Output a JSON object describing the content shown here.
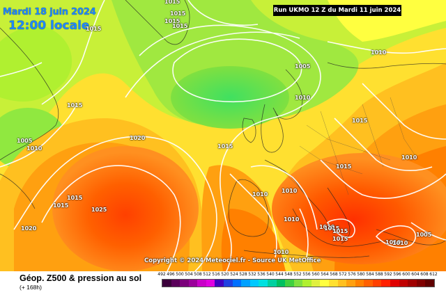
{
  "header": {
    "date": "Mardi 18 juin 2024",
    "time": "12:00 locale",
    "run": "Run UKMO 12 Z du Mardi 11 juin 2024"
  },
  "copyright": "Copyright © 2024 Meteociel.fr - Source UK MetOffice",
  "footer": {
    "product": "Géop. Z500 & pression au sol",
    "horizon": "(+ 168h)"
  },
  "isobar_labels": [
    "1015",
    "1015",
    "1015",
    "1015",
    "1015",
    "1010",
    "1005",
    "1015",
    "1010",
    "1015",
    "1005",
    "1010",
    "1010",
    "1020",
    "1015",
    "1015",
    "1010",
    "1010",
    "1015",
    "1015",
    "1025",
    "1010",
    "1010",
    "1010",
    "1020",
    "1015",
    "1015",
    "1010",
    "1005",
    "1010",
    "1015"
  ],
  "legend": {
    "ticks": [
      "492",
      "496",
      "500",
      "504",
      "508",
      "512",
      "516",
      "520",
      "524",
      "528",
      "532",
      "536",
      "540",
      "544",
      "548",
      "552",
      "556",
      "560",
      "564",
      "568",
      "572",
      "576",
      "580",
      "584",
      "588",
      "592",
      "596",
      "600",
      "604",
      "608",
      "612"
    ],
    "colors": [
      "#3a003a",
      "#5a005a",
      "#7a007a",
      "#9a009a",
      "#c800c8",
      "#e000e0",
      "#4000c0",
      "#2040e0",
      "#0070ff",
      "#00a0ff",
      "#00c8ff",
      "#00e0e0",
      "#00d0a0",
      "#00c060",
      "#40d040",
      "#80e040",
      "#b0f030",
      "#e0f040",
      "#ffff40",
      "#ffe030",
      "#ffc020",
      "#ffa010",
      "#ff8000",
      "#ff6000",
      "#ff4000",
      "#ff2000",
      "#e00000",
      "#c00000",
      "#a00000",
      "#800000",
      "#600000"
    ]
  }
}
